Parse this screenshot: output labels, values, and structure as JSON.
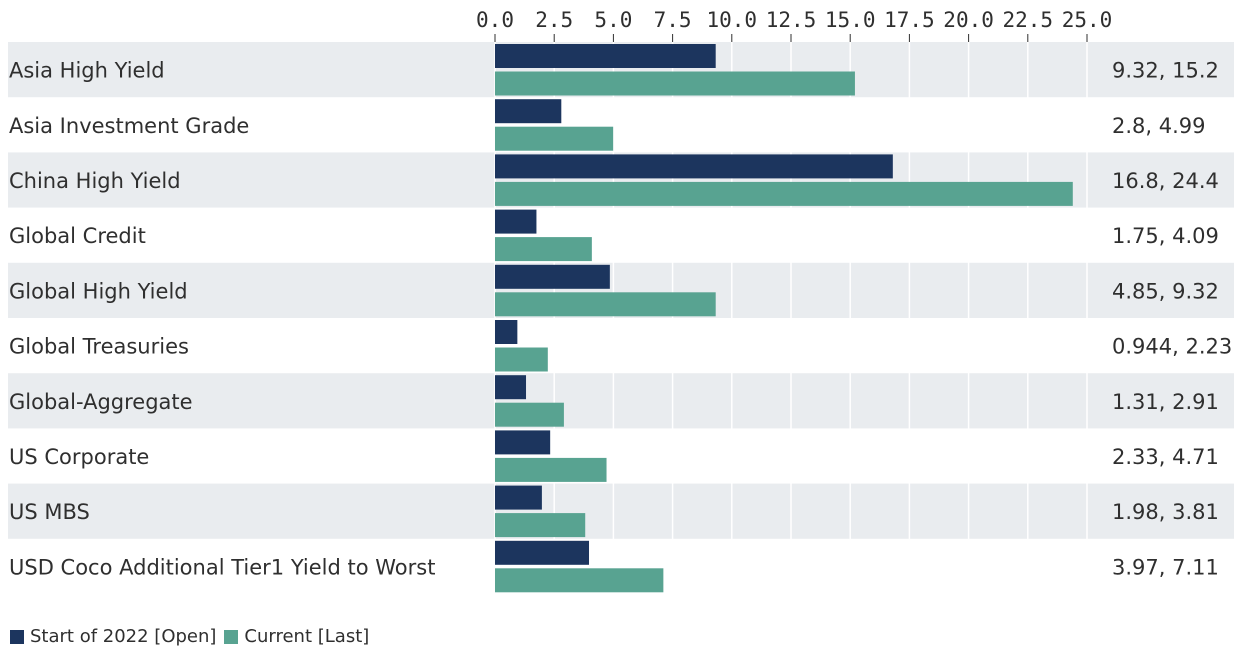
{
  "chart_data": {
    "type": "bar",
    "orientation": "horizontal",
    "categories": [
      "Asia High Yield",
      "Asia Investment Grade",
      "China High Yield",
      "Global Credit",
      "Global High Yield",
      "Global Treasuries",
      "Global-Aggregate",
      "US Corporate",
      "US MBS",
      "USD Coco Additional Tier1 Yield to Worst"
    ],
    "series": [
      {
        "name": "Start of 2022 [Open]",
        "color": "#1c355e",
        "values": [
          9.32,
          2.8,
          16.8,
          1.75,
          4.85,
          0.944,
          1.31,
          2.33,
          1.98,
          3.97
        ]
      },
      {
        "name": "Current [Last]",
        "color": "#58a391",
        "values": [
          15.2,
          4.99,
          24.4,
          4.09,
          9.32,
          2.23,
          2.91,
          4.71,
          3.81,
          7.11
        ]
      }
    ],
    "value_labels": [
      "9.32, 15.2",
      "2.8, 4.99",
      "16.8, 24.4",
      "1.75, 4.09",
      "4.85, 9.32",
      "0.944, 2.23",
      "1.31, 2.91",
      "2.33, 4.71",
      "1.98, 3.81",
      "3.97, 7.11"
    ],
    "xlim": [
      0,
      25
    ],
    "xticks": [
      "0.0",
      "2.5",
      "5.0",
      "7.5",
      "10.0",
      "12.5",
      "15.0",
      "17.5",
      "20.0",
      "22.5",
      "25.0"
    ],
    "xaxis_position": "top",
    "grid": true,
    "legend_position": "bottom-left",
    "row_band_color": "#e9ecef",
    "title": "",
    "xlabel": "",
    "ylabel": ""
  }
}
